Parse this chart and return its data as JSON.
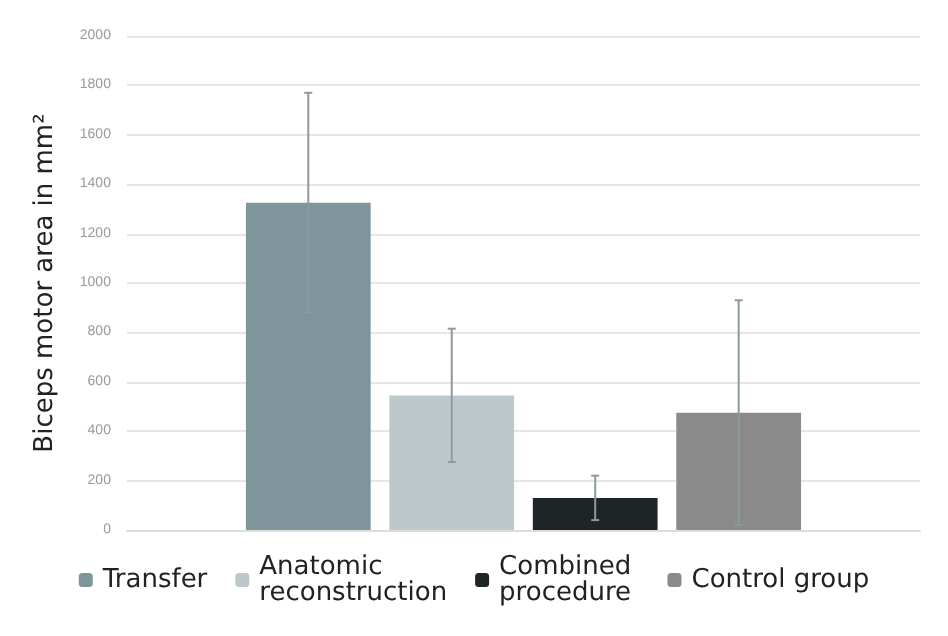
{
  "chart_data": {
    "type": "bar",
    "ylabel": "Biceps motor area in mm²",
    "categories": [
      null
    ],
    "series": [
      {
        "name": "Transfer",
        "color": "#7f959c",
        "values": [
          1325
        ],
        "errors": [
          445
        ]
      },
      {
        "name": "Anatomic reconstruction",
        "color": "#bdc8cc",
        "values": [
          545
        ],
        "errors": [
          270
        ]
      },
      {
        "name": "Combined procedure",
        "color": "#1e2526",
        "values": [
          130
        ],
        "errors": [
          90
        ]
      },
      {
        "name": "Control group",
        "color": "#8a8a8a",
        "values": [
          475
        ],
        "errors": [
          455
        ]
      }
    ],
    "ylim": [
      0,
      2000
    ],
    "yticks": [
      0,
      200,
      400,
      600,
      800,
      1000,
      1200,
      1400,
      1600,
      1800,
      2000
    ],
    "grid": "y",
    "legend": "bottom"
  }
}
